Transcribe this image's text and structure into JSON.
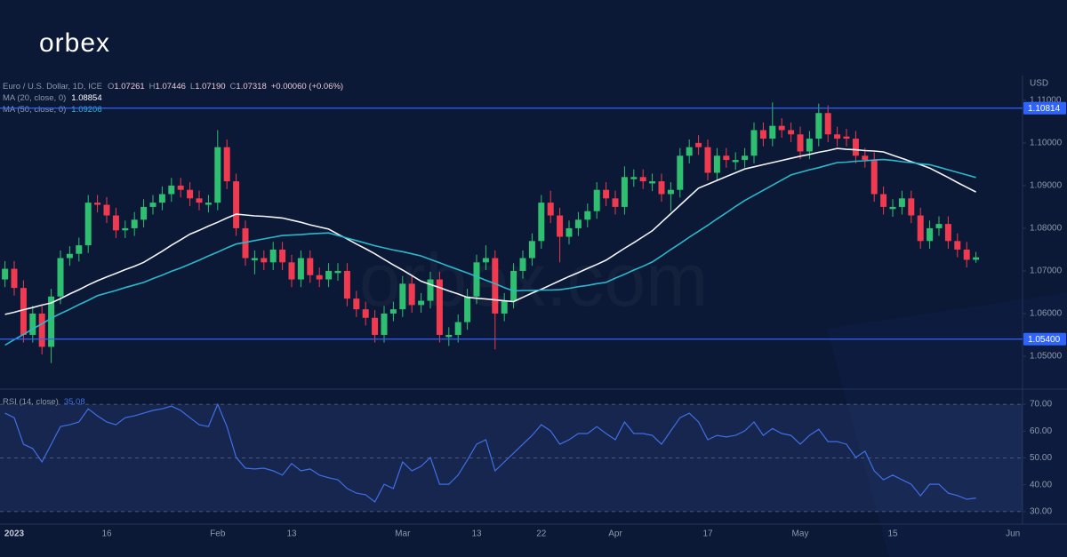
{
  "header": {
    "logo": "orbex",
    "watermark": "orbex.com",
    "symbol": "Euro / U.S. Dollar, 1D, ICE",
    "o_label": "O",
    "open": "1.07261",
    "h_label": "H",
    "high": "1.07446",
    "l_label": "L",
    "low": "1.07190",
    "c_label": "C",
    "close": "1.07318",
    "change": "+0.00060 (+0.06%)",
    "ma20_value": "1.08854",
    "ma50_value": "1.09206",
    "rsi_value": "35.08"
  },
  "chart_data": [
    {
      "type": "candlestick",
      "y_unit": "USD",
      "up_color": "#2fbf71",
      "down_color": "#ef3a4f",
      "categories": [
        null,
        "2023",
        null,
        null,
        null,
        null,
        null,
        null,
        null,
        null,
        null,
        "16",
        null,
        null,
        null,
        null,
        null,
        null,
        null,
        null,
        null,
        null,
        null,
        "Feb",
        null,
        null,
        null,
        null,
        null,
        null,
        null,
        "13",
        null,
        null,
        null,
        null,
        null,
        null,
        null,
        null,
        null,
        null,
        null,
        "Mar",
        null,
        null,
        null,
        null,
        null,
        null,
        null,
        "13",
        null,
        null,
        null,
        null,
        null,
        null,
        "22",
        null,
        null,
        null,
        null,
        null,
        null,
        null,
        "Apr",
        null,
        null,
        null,
        null,
        null,
        null,
        null,
        null,
        null,
        "17",
        null,
        null,
        null,
        null,
        null,
        null,
        null,
        null,
        null,
        "May",
        null,
        null,
        null,
        null,
        null,
        null,
        null,
        null,
        null,
        "15",
        null,
        null,
        null,
        null,
        null,
        null,
        null,
        null,
        null,
        null,
        null,
        null,
        "Jun"
      ],
      "open": [
        1.068,
        1.0705,
        1.066,
        1.055,
        1.06,
        1.0522,
        1.064,
        1.073,
        1.074,
        1.076,
        1.086,
        1.0855,
        1.083,
        1.0795,
        1.08,
        1.082,
        1.085,
        1.086,
        1.088,
        1.09,
        1.089,
        1.087,
        1.0855,
        1.086,
        1.099,
        1.091,
        1.08,
        1.0725,
        1.073,
        1.072,
        1.075,
        1.072,
        1.068,
        1.073,
        1.069,
        1.068,
        1.0695,
        1.07,
        1.0635,
        1.061,
        1.059,
        1.055,
        1.06,
        1.061,
        1.067,
        1.062,
        1.063,
        1.068,
        1.0545,
        1.055,
        1.058,
        1.064,
        1.072,
        1.073,
        1.06,
        1.063,
        1.07,
        1.073,
        1.077,
        1.086,
        1.083,
        1.078,
        1.08,
        1.082,
        1.084,
        1.089,
        1.087,
        1.085,
        1.0915,
        1.092,
        1.0905,
        1.091,
        1.088,
        1.089,
        1.097,
        1.1,
        1.099,
        1.093,
        1.097,
        1.0955,
        1.096,
        1.097,
        1.103,
        1.101,
        1.104,
        1.103,
        1.102,
        1.098,
        1.101,
        1.107,
        1.102,
        1.1015,
        1.101,
        1.097,
        1.096,
        1.088,
        1.0845,
        1.085,
        1.087,
        1.083,
        1.077,
        1.08,
        1.081,
        1.077,
        1.075,
        1.07261,
        null,
        null,
        null,
        null
      ],
      "high": [
        1.0723,
        1.0723,
        1.0678,
        1.0618,
        1.0618,
        1.0658,
        1.0748,
        1.0758,
        1.0778,
        1.0878,
        1.0878,
        1.0873,
        1.0848,
        1.0818,
        1.0838,
        1.0868,
        1.0878,
        1.0898,
        1.0918,
        1.0918,
        1.0908,
        1.0888,
        1.0878,
        1.103,
        1.1008,
        1.0928,
        1.0818,
        1.0748,
        1.0748,
        1.0768,
        1.0768,
        1.0738,
        1.0748,
        1.0748,
        1.0708,
        1.0718,
        1.0718,
        1.0718,
        1.0653,
        1.0628,
        1.0608,
        1.0618,
        1.0628,
        1.0688,
        1.0688,
        1.0648,
        1.0698,
        1.0698,
        1.0568,
        1.0598,
        1.0658,
        1.0738,
        1.076,
        1.0748,
        1.0648,
        1.0718,
        1.0748,
        1.0788,
        1.0878,
        1.0888,
        1.0848,
        1.0818,
        1.0838,
        1.0858,
        1.0908,
        1.0908,
        1.0888,
        1.0945,
        1.0938,
        1.0938,
        1.0928,
        1.0928,
        1.0908,
        1.0988,
        1.1008,
        1.1018,
        1.1008,
        1.0988,
        1.0988,
        1.0978,
        1.0988,
        1.1048,
        1.1048,
        1.1095,
        1.1058,
        1.1048,
        1.1038,
        1.1028,
        1.1092,
        1.1088,
        1.1038,
        1.1033,
        1.1028,
        1.0988,
        1.0978,
        1.0898,
        1.0868,
        1.0888,
        1.0888,
        1.0848,
        1.0818,
        1.0828,
        1.0828,
        1.0788,
        1.0768,
        1.07446,
        null,
        null,
        null,
        null
      ],
      "low": [
        1.0662,
        1.0642,
        1.0532,
        1.0532,
        1.0504,
        1.0484,
        1.0622,
        1.0712,
        1.0722,
        1.0742,
        1.0837,
        1.0812,
        1.0777,
        1.0777,
        1.0782,
        1.0802,
        1.0832,
        1.0842,
        1.0862,
        1.0872,
        1.0852,
        1.0842,
        1.0837,
        1.0842,
        1.0892,
        1.0782,
        1.0712,
        1.0692,
        1.0702,
        1.0702,
        1.0702,
        1.0662,
        1.0662,
        1.0672,
        1.0662,
        1.0662,
        1.0677,
        1.0617,
        1.0592,
        1.0572,
        1.0532,
        1.0532,
        1.0582,
        1.0592,
        1.0602,
        1.0602,
        1.0612,
        1.0532,
        1.0524,
        1.0532,
        1.0562,
        1.0622,
        1.0702,
        1.0516,
        1.0582,
        1.0612,
        1.0682,
        1.0712,
        1.0752,
        1.0812,
        1.072,
        1.0762,
        1.0782,
        1.0802,
        1.0822,
        1.0852,
        1.0832,
        1.0832,
        1.0897,
        1.0892,
        1.0887,
        1.0862,
        1.084,
        1.0872,
        1.0952,
        1.0972,
        1.0912,
        1.0912,
        1.0942,
        1.0937,
        1.0942,
        1.0952,
        1.0992,
        1.0992,
        1.1012,
        1.1002,
        1.0962,
        1.0962,
        1.0992,
        1.1002,
        1.0992,
        1.0992,
        1.0952,
        1.0942,
        1.0862,
        1.0832,
        1.0827,
        1.0832,
        1.0812,
        1.0752,
        1.0752,
        1.0782,
        1.0752,
        1.0732,
        1.0708,
        1.0719,
        null,
        null,
        null,
        null
      ],
      "close": [
        1.0705,
        1.066,
        1.055,
        1.06,
        1.0522,
        1.064,
        1.073,
        1.074,
        1.076,
        1.086,
        1.0855,
        1.083,
        1.0795,
        1.08,
        1.082,
        1.085,
        1.086,
        1.088,
        1.09,
        1.089,
        1.087,
        1.086,
        1.086,
        1.099,
        1.091,
        1.08,
        1.073,
        1.073,
        1.072,
        1.075,
        1.072,
        1.068,
        1.073,
        1.069,
        1.068,
        1.07,
        1.07,
        1.0635,
        1.061,
        1.059,
        1.055,
        1.06,
        1.061,
        1.067,
        1.062,
        1.063,
        1.068,
        1.055,
        1.055,
        1.058,
        1.064,
        1.072,
        1.073,
        1.06,
        1.063,
        1.07,
        1.073,
        1.077,
        1.086,
        1.083,
        1.078,
        1.08,
        1.082,
        1.084,
        1.089,
        1.087,
        1.085,
        1.092,
        1.092,
        1.091,
        1.091,
        1.088,
        1.089,
        1.097,
        1.099,
        1.099,
        1.093,
        1.097,
        1.096,
        1.096,
        1.097,
        1.103,
        1.101,
        1.104,
        1.103,
        1.102,
        1.098,
        1.101,
        1.107,
        1.102,
        1.101,
        1.101,
        1.097,
        1.096,
        1.088,
        1.085,
        1.085,
        1.087,
        1.083,
        1.077,
        1.08,
        1.081,
        1.077,
        1.075,
        1.0726,
        1.07318,
        null,
        null,
        null,
        null
      ],
      "series": [
        {
          "name": "MA (20, close, 0)",
          "color": "#f2f4f8",
          "values": [
            1.0598,
            1.0603,
            1.0609,
            1.0614,
            1.062,
            1.0625,
            1.0635,
            1.0646,
            1.0656,
            1.0667,
            1.0677,
            1.0686,
            1.0694,
            1.0703,
            1.0711,
            1.072,
            1.0733,
            1.0746,
            1.076,
            1.0773,
            1.0786,
            1.0795,
            1.0805,
            1.0814,
            1.0824,
            1.0833,
            1.0831,
            1.0829,
            1.0828,
            1.0826,
            1.0824,
            1.0819,
            1.0814,
            1.0808,
            1.0803,
            1.0798,
            1.0786,
            1.0775,
            1.0763,
            1.0752,
            1.074,
            1.0727,
            1.0714,
            1.0702,
            1.0689,
            1.0676,
            1.0668,
            1.0661,
            1.0653,
            1.0646,
            1.0638,
            1.0636,
            1.0634,
            1.0632,
            1.063,
            1.0628,
            1.0638,
            1.0648,
            1.0657,
            1.0667,
            1.0677,
            1.0687,
            1.0696,
            1.0706,
            1.0715,
            1.0725,
            1.0739,
            1.0753,
            1.0766,
            1.078,
            1.0794,
            1.0814,
            1.0834,
            1.0854,
            1.0874,
            1.0894,
            1.0903,
            1.0912,
            1.0921,
            1.093,
            1.0939,
            1.0944,
            1.0949,
            1.0954,
            1.0959,
            1.0964,
            1.0969,
            1.0973,
            1.0978,
            1.0982,
            1.0987,
            1.0985,
            1.0984,
            1.0982,
            1.0981,
            1.0979,
            1.0971,
            1.0964,
            1.0956,
            1.0949,
            1.0941,
            1.093,
            1.0919,
            1.0907,
            1.0896,
            1.0885,
            null,
            null,
            null,
            null
          ]
        },
        {
          "name": "MA (50, close, 0)",
          "color": "#2bb8cc",
          "values": [
            1.0526,
            1.0539,
            1.0551,
            1.0564,
            1.0576,
            1.0589,
            1.06,
            1.061,
            1.0621,
            1.0631,
            1.0642,
            1.0648,
            1.0654,
            1.0661,
            1.0667,
            1.0673,
            1.0682,
            1.069,
            1.0699,
            1.0707,
            1.0716,
            1.0725,
            1.0735,
            1.0744,
            1.0754,
            1.0763,
            1.0767,
            1.0771,
            1.0775,
            1.0779,
            1.0783,
            1.0784,
            1.0785,
            1.0787,
            1.0788,
            1.0789,
            1.0783,
            1.0777,
            1.0771,
            1.0765,
            1.0759,
            1.0754,
            1.0749,
            1.0745,
            1.074,
            1.0735,
            1.0727,
            1.0719,
            1.0711,
            1.0703,
            1.0695,
            1.0687,
            1.0678,
            1.067,
            1.0661,
            1.0653,
            1.0654,
            1.0654,
            1.0655,
            1.0655,
            1.0656,
            1.0659,
            1.0663,
            1.0666,
            1.067,
            1.0673,
            1.0683,
            1.0692,
            1.0702,
            1.0711,
            1.0721,
            1.0735,
            1.075,
            1.0764,
            1.0779,
            1.0793,
            1.0807,
            1.0822,
            1.0836,
            1.0851,
            1.0865,
            1.0877,
            1.0889,
            1.0901,
            1.0913,
            1.0925,
            1.0931,
            1.0937,
            1.0942,
            1.0948,
            1.0954,
            1.0955,
            1.0957,
            1.0958,
            1.096,
            1.0961,
            1.0959,
            1.0956,
            1.0954,
            1.0951,
            1.0949,
            1.0943,
            1.0937,
            1.0931,
            1.0925,
            1.0919,
            null,
            null,
            null,
            null
          ]
        }
      ],
      "hlines": [
        {
          "value": 1.10814,
          "label": "1.10814"
        },
        {
          "value": 1.054,
          "label": "1.05400"
        }
      ],
      "hline_color": "#2f63ff",
      "ylim": [
        1.0425,
        1.1158
      ],
      "yticks": [
        {
          "value": 1.05,
          "label": "1.05000"
        },
        {
          "value": 1.06,
          "label": "1.06000"
        },
        {
          "value": 1.07,
          "label": "1.07000"
        },
        {
          "value": 1.08,
          "label": "1.08000"
        },
        {
          "value": 1.09,
          "label": "1.09000"
        },
        {
          "value": 1.1,
          "label": "1.10000"
        },
        {
          "value": 1.11,
          "label": "1.11000"
        }
      ]
    },
    {
      "type": "line",
      "band": [
        30,
        70
      ],
      "band_color": "rgba(60,80,150,0.25)",
      "series": [
        {
          "name": "RSI (14, close)",
          "color": "#3f6fe6",
          "values": [
            66.7,
            65.0,
            55.1,
            53.5,
            48.5,
            55.1,
            61.7,
            62.4,
            63.4,
            68.3,
            65.7,
            63.4,
            62.4,
            65.0,
            65.7,
            66.7,
            67.7,
            68.3,
            69.3,
            67.7,
            65.0,
            62.4,
            61.7,
            70.0,
            61.7,
            50.2,
            46.2,
            45.9,
            46.2,
            45.2,
            43.6,
            47.9,
            45.2,
            45.9,
            43.6,
            42.6,
            41.9,
            38.6,
            36.9,
            36.3,
            33.6,
            40.2,
            38.6,
            48.5,
            45.2,
            46.9,
            50.2,
            40.2,
            40.2,
            43.6,
            49.2,
            55.1,
            56.8,
            45.2,
            48.5,
            51.8,
            55.1,
            58.4,
            62.4,
            60.1,
            55.1,
            56.8,
            59.1,
            59.1,
            61.7,
            59.1,
            56.8,
            63.4,
            59.1,
            59.1,
            58.4,
            55.1,
            60.1,
            65.0,
            66.7,
            63.4,
            56.8,
            58.4,
            57.8,
            58.4,
            60.1,
            63.4,
            58.4,
            61.0,
            59.1,
            58.4,
            55.1,
            58.4,
            60.7,
            56.1,
            56.1,
            55.1,
            50.2,
            52.5,
            45.2,
            41.9,
            43.6,
            41.9,
            40.2,
            35.9,
            40.2,
            40.2,
            36.9,
            36.0,
            34.6,
            35.08,
            null,
            null,
            null,
            null
          ]
        }
      ],
      "ylim": [
        25,
        75
      ],
      "yticks": [
        {
          "value": 30,
          "label": "30.00"
        },
        {
          "value": 40,
          "label": "40.00"
        },
        {
          "value": 50,
          "label": "50.00"
        },
        {
          "value": 60,
          "label": "60.00"
        },
        {
          "value": 70,
          "label": "70.00"
        }
      ]
    }
  ]
}
